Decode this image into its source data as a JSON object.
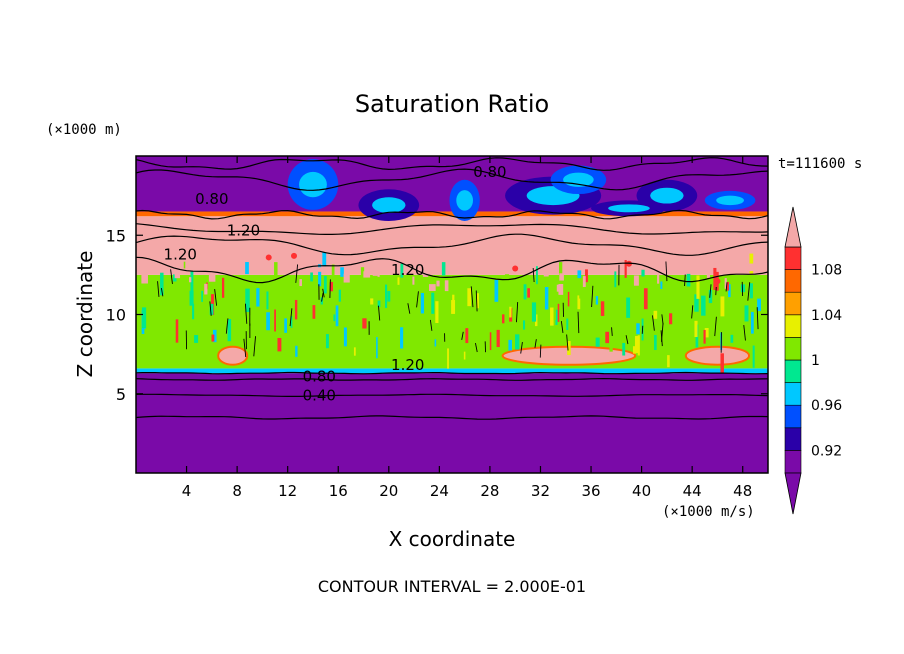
{
  "chart_data": {
    "type": "heatmap",
    "title": "Saturation Ratio",
    "xlabel": "X coordinate",
    "ylabel": "Z coordinate",
    "x_unit": "(×1000 m/s)",
    "y_unit": "(×1000 m)",
    "time_label": "t=111600 s",
    "footer": "CONTOUR INTERVAL = 2.000E-01",
    "xlim": [
      0,
      50
    ],
    "ylim": [
      0,
      20
    ],
    "x_ticks": [
      4,
      8,
      12,
      16,
      20,
      24,
      28,
      32,
      36,
      40,
      44,
      48
    ],
    "y_ticks": [
      5,
      10,
      15
    ],
    "colorbar": {
      "levels": [
        0.9,
        0.92,
        0.94,
        0.96,
        0.98,
        1.0,
        1.02,
        1.04,
        1.06,
        1.08,
        1.1
      ],
      "tick_labels": [
        "0.92",
        "0.96",
        "1",
        "1.04",
        "1.08"
      ],
      "tick_values": [
        0.92,
        0.96,
        1.0,
        1.04,
        1.08
      ],
      "colors": [
        "#7a0aa8",
        "#2a00a8",
        "#0050ff",
        "#00c8ff",
        "#00e890",
        "#80e800",
        "#e8f000",
        "#ffa000",
        "#ff6800",
        "#ff3030",
        "#f4a8a8"
      ],
      "extend": "both"
    },
    "layers": [
      {
        "z_from": 0.0,
        "z_to": 6.3,
        "value": 0.4,
        "color": "#7a0aa8"
      },
      {
        "z_from": 6.3,
        "z_to": 6.6,
        "value": 0.95,
        "color": "#00c8ff"
      },
      {
        "z_from": 6.6,
        "z_to": 12.5,
        "value": 1.0,
        "color": "#80e800"
      },
      {
        "z_from": 12.5,
        "z_to": 16.2,
        "value": 1.2,
        "color": "#f4a8a8"
      },
      {
        "z_from": 16.2,
        "z_to": 16.5,
        "value": 1.05,
        "color": "#ff6800"
      },
      {
        "z_from": 16.5,
        "z_to": 20.0,
        "value": 0.7,
        "color": "#7a0aa8"
      }
    ],
    "contour_labels": [
      {
        "text": "0.80",
        "x": 6.0,
        "z": 17.3
      },
      {
        "text": "1.20",
        "x": 8.5,
        "z": 15.3
      },
      {
        "text": "1.20",
        "x": 3.5,
        "z": 13.8
      },
      {
        "text": "1.20",
        "x": 21.5,
        "z": 12.8
      },
      {
        "text": "0.80",
        "x": 28.0,
        "z": 19.0
      },
      {
        "text": "1.20",
        "x": 21.5,
        "z": 6.8
      },
      {
        "text": "0.80",
        "x": 14.5,
        "z": 6.1
      },
      {
        "text": "0.40",
        "x": 14.5,
        "z": 4.9
      }
    ]
  }
}
